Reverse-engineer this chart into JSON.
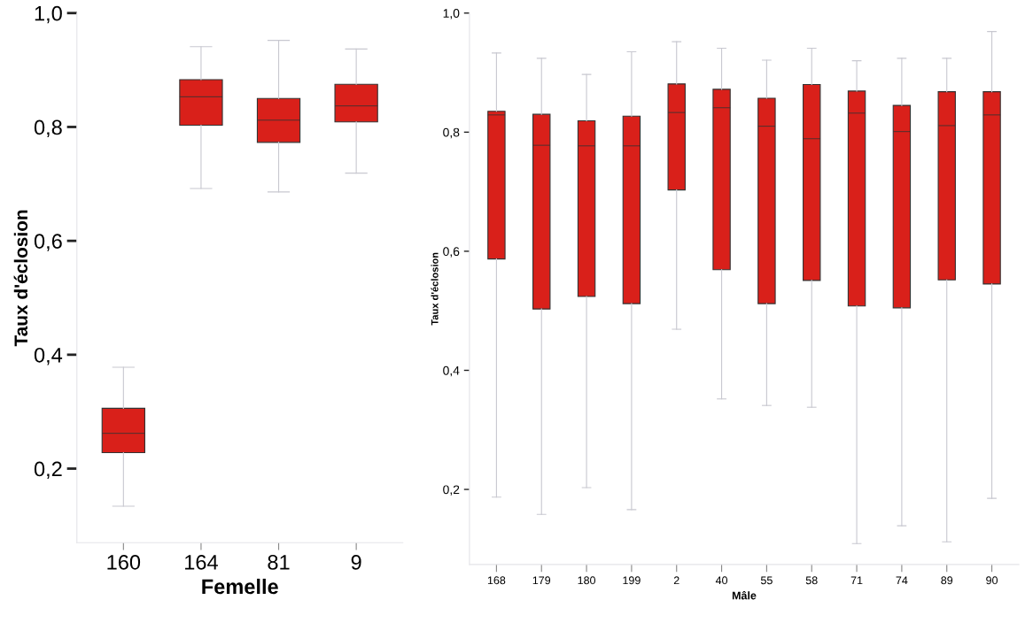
{
  "chart_data": [
    {
      "type": "box",
      "xlabel": "Femelle",
      "ylabel": "Taux d'éclosion",
      "categories": [
        "160",
        "164",
        "81",
        "9"
      ],
      "color": "#d9201a",
      "ylim": [
        0.07,
        1.0
      ],
      "yticks": [
        {
          "value": 0.2,
          "label": "0,2"
        },
        {
          "value": 0.4,
          "label": "0,4"
        },
        {
          "value": 0.6,
          "label": "0,6"
        },
        {
          "value": 0.8,
          "label": "0,8"
        },
        {
          "value": 1.0,
          "label": "1,0"
        }
      ],
      "grid": false,
      "boxes": [
        {
          "low": 0.134,
          "q1": 0.228,
          "median": 0.262,
          "q3": 0.306,
          "high": 0.378
        },
        {
          "low": 0.692,
          "q1": 0.803,
          "median": 0.853,
          "q3": 0.883,
          "high": 0.941
        },
        {
          "low": 0.686,
          "q1": 0.773,
          "median": 0.812,
          "q3": 0.85,
          "high": 0.952
        },
        {
          "low": 0.719,
          "q1": 0.809,
          "median": 0.837,
          "q3": 0.875,
          "high": 0.937
        }
      ]
    },
    {
      "type": "box",
      "xlabel": "Mâle",
      "ylabel": "Taux d'éclosion",
      "categories": [
        "168",
        "179",
        "180",
        "199",
        "2",
        "40",
        "55",
        "58",
        "71",
        "74",
        "89",
        "90"
      ],
      "color": "#d9201a",
      "ylim": [
        0.074,
        1.0
      ],
      "yticks": [
        {
          "value": 0.2,
          "label": "0,2"
        },
        {
          "value": 0.4,
          "label": "0,4"
        },
        {
          "value": 0.6,
          "label": "0,6"
        },
        {
          "value": 0.8,
          "label": "0,8"
        },
        {
          "value": 1.0,
          "label": "1,0"
        }
      ],
      "grid": false,
      "boxes": [
        {
          "low": 0.187,
          "q1": 0.587,
          "median": 0.829,
          "q3": 0.835,
          "high": 0.933
        },
        {
          "low": 0.158,
          "q1": 0.503,
          "median": 0.778,
          "q3": 0.83,
          "high": 0.924
        },
        {
          "low": 0.203,
          "q1": 0.524,
          "median": 0.777,
          "q3": 0.819,
          "high": 0.897
        },
        {
          "low": 0.166,
          "q1": 0.512,
          "median": 0.777,
          "q3": 0.827,
          "high": 0.935
        },
        {
          "low": 0.469,
          "q1": 0.703,
          "median": 0.833,
          "q3": 0.881,
          "high": 0.952
        },
        {
          "low": 0.352,
          "q1": 0.569,
          "median": 0.841,
          "q3": 0.872,
          "high": 0.941
        },
        {
          "low": 0.341,
          "q1": 0.512,
          "median": 0.81,
          "q3": 0.857,
          "high": 0.921
        },
        {
          "low": 0.338,
          "q1": 0.551,
          "median": 0.789,
          "q3": 0.88,
          "high": 0.941
        },
        {
          "low": 0.109,
          "q1": 0.508,
          "median": 0.832,
          "q3": 0.869,
          "high": 0.92
        },
        {
          "low": 0.139,
          "q1": 0.505,
          "median": 0.801,
          "q3": 0.845,
          "high": 0.924
        },
        {
          "low": 0.112,
          "q1": 0.552,
          "median": 0.811,
          "q3": 0.868,
          "high": 0.924
        },
        {
          "low": 0.185,
          "q1": 0.545,
          "median": 0.829,
          "q3": 0.868,
          "high": 0.969
        }
      ]
    }
  ]
}
